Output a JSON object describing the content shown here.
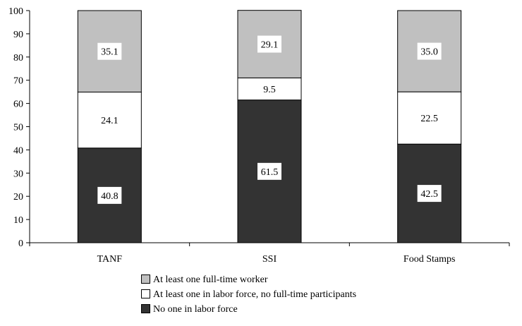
{
  "chart_data": {
    "type": "bar",
    "stacked": true,
    "categories": [
      "TANF",
      "SSI",
      "Food Stamps"
    ],
    "series": [
      {
        "name": "No one in labor force",
        "values": [
          40.8,
          61.5,
          42.5
        ],
        "color": "#333333"
      },
      {
        "name": "At least one in labor force, no full-time participants",
        "values": [
          24.1,
          9.5,
          22.5
        ],
        "color": "#ffffff"
      },
      {
        "name": "At least one full-time worker",
        "values": [
          35.1,
          29.1,
          35.0
        ],
        "color": "#c0c0c0"
      }
    ],
    "ylim": [
      0,
      100
    ],
    "yticks": [
      "0",
      "10",
      "20",
      "30",
      "40",
      "50",
      "60",
      "70",
      "80",
      "90",
      "100"
    ],
    "grid": false,
    "legend_position": "bottom",
    "legend_order": [
      2,
      1,
      0
    ],
    "data_labels": true
  }
}
